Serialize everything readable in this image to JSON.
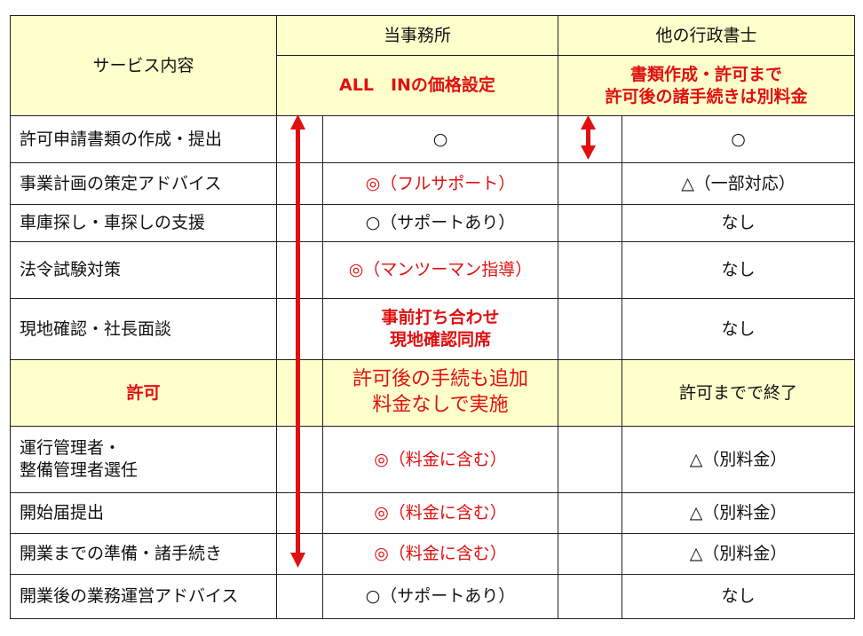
{
  "header": {
    "service_col": "サービス内容",
    "our_office": "当事務所",
    "other": "他の行政書士",
    "our_pricing": "ALL　INの価格設定",
    "other_pricing": "書類作成・許可まで\n許可後の諸手続きは別料金"
  },
  "rows": [
    {
      "service": "許可申請書類の作成・提出",
      "ours": "○",
      "other": "○"
    },
    {
      "service": "事業計画の策定アドバイス",
      "ours": "◎（フルサポート）",
      "other": "△（一部対応）"
    },
    {
      "service": "車庫探し・車探しの支援",
      "ours": "○（サポートあり）",
      "other": "なし"
    },
    {
      "service": "法令試験対策",
      "ours": "◎（マンツーマン指導）",
      "other": "なし"
    },
    {
      "service": "現地確認・社長面談",
      "ours": "事前打ち合わせ\n現地確認同席",
      "other": "なし"
    },
    {
      "service": "許可",
      "ours": "許可後の手続も追加\n料金なしで実施",
      "other": "許可までで終了"
    },
    {
      "service": "運行管理者・\n整備管理者選任",
      "ours": "◎（料金に含む）",
      "other": "△（別料金）"
    },
    {
      "service": "開始届提出",
      "ours": "◎（料金に含む）",
      "other": "△（別料金）"
    },
    {
      "service": "開業までの準備・諸手続き",
      "ours": "◎（料金に含む）",
      "other": "△（別料金）"
    },
    {
      "service": "開業後の業務運営アドバイス",
      "ours": "○（サポートあり）",
      "other": "なし"
    }
  ],
  "colors": {
    "accent_red": "#e01010",
    "header_yellow": "#FFFFCC"
  }
}
